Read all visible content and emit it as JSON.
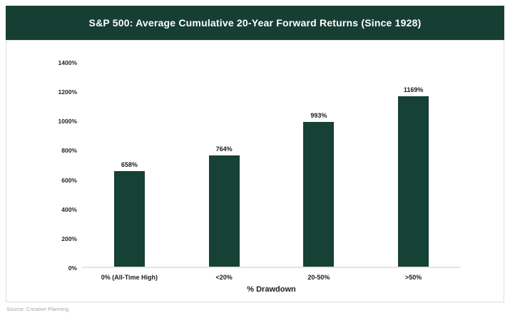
{
  "header": {
    "title": "S&P 500: Average Cumulative 20-Year Forward Returns (Since 1928)"
  },
  "chart_data": {
    "type": "bar",
    "title": "S&P 500: Average Cumulative 20-Year Forward Returns (Since 1928)",
    "categories": [
      "0% (All-Time High)",
      "<20%",
      "20-50%",
      ">50%"
    ],
    "values": [
      658,
      764,
      993,
      1169
    ],
    "value_labels": [
      "658%",
      "764%",
      "993%",
      "1169%"
    ],
    "xlabel": "% Drawdown",
    "ylabel": "",
    "ylim": [
      0,
      1400
    ],
    "ytick_values": [
      0,
      200,
      400,
      600,
      800,
      1000,
      1200,
      1400
    ],
    "ytick_labels": [
      "0%",
      "200%",
      "400%",
      "600%",
      "800%",
      "1000%",
      "1200%",
      "1400%"
    ],
    "grid": false,
    "legend": null,
    "bar_color": "#16413565"
  },
  "colors": {
    "banner_bg": "#173e33",
    "bar": "#164135",
    "baseline": "#e4e4e4",
    "card_border": "#dedede",
    "label_text": "#1b1b1b",
    "source_text": "#a3aaa8"
  },
  "footer": {
    "source": "Source: Creative Planning"
  }
}
